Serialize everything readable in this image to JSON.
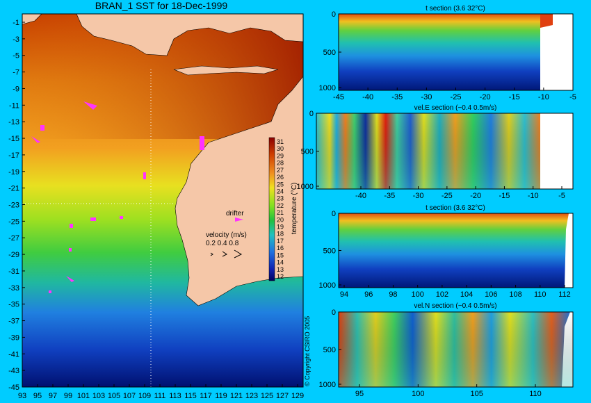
{
  "map": {
    "title": "BRAN_1 SST for 18-Dec-1999",
    "lat_ticks": [
      "-1",
      "-3",
      "-5",
      "-7",
      "-9",
      "-11",
      "-13",
      "-15",
      "-17",
      "-19",
      "-21",
      "-23",
      "-25",
      "-27",
      "-29",
      "-31",
      "-33",
      "-35",
      "-37",
      "-39",
      "-41",
      "-43",
      "-45"
    ],
    "lon_ticks": [
      "93",
      "95",
      "97",
      "99",
      "101",
      "103",
      "105",
      "107",
      "109",
      "111",
      "113",
      "115",
      "117",
      "119",
      "121",
      "123",
      "125",
      "127",
      "129"
    ],
    "colorbar": {
      "values": [
        "31",
        "30",
        "29",
        "28",
        "27",
        "26",
        "25",
        "24",
        "23",
        "22",
        "21",
        "20",
        "19",
        "18",
        "17",
        "16",
        "15",
        "14",
        "13",
        "12"
      ],
      "label": "temperature (°C)"
    },
    "legend": {
      "drifter_label": "drifter",
      "velocity_label": "velocity (m/s)",
      "velocity_scale": "0.2 0.4 0.8"
    },
    "copyright": "© Copyright CSIRO 2005"
  },
  "colors": {
    "background": "#00ccff",
    "land": "#f5c7a8",
    "drifter": "#ff33ff"
  },
  "panels": [
    {
      "title": "t section (3.6      32°C)",
      "x_ticks": [
        "-45",
        "-40",
        "-35",
        "-30",
        "-25",
        "-20",
        "-15",
        "-10",
        "-5"
      ],
      "y_ticks": [
        "0",
        "500",
        "1000"
      ]
    },
    {
      "title": "vel.E section (−0.4      0.5m/s)",
      "x_ticks": [
        "-40",
        "-35",
        "-30",
        "-25",
        "-20",
        "-15",
        "-10",
        "-5"
      ],
      "y_ticks": [
        "0",
        "500",
        "1000"
      ]
    },
    {
      "title": "t section (3.6      32°C)",
      "x_ticks": [
        "94",
        "96",
        "98",
        "100",
        "102",
        "104",
        "106",
        "108",
        "110",
        "112"
      ],
      "y_ticks": [
        "0",
        "500",
        "1000"
      ]
    },
    {
      "title": "vel.N section (−0.4      0.5m/s)",
      "x_ticks": [
        "95",
        "100",
        "105",
        "110"
      ],
      "y_ticks": [
        "0",
        "500",
        "1000"
      ]
    }
  ]
}
